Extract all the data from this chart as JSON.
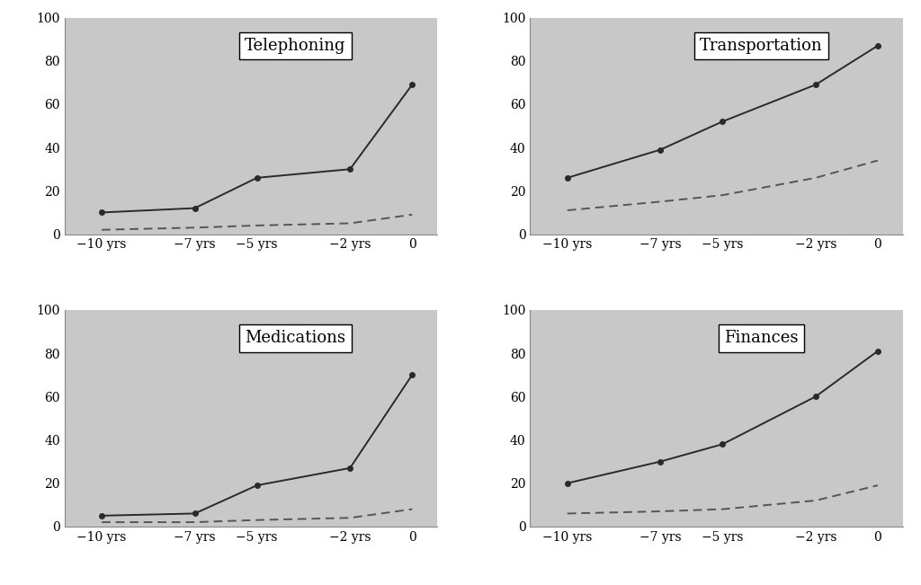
{
  "x_values": [
    -10,
    -7,
    -5,
    -2,
    0
  ],
  "x_tick_labels": [
    "−10 yrs",
    "−7 yrs",
    "−5 yrs",
    "−2 yrs",
    "0"
  ],
  "subplots": [
    {
      "title": "Telephoning",
      "solid_line": [
        10,
        12,
        26,
        30,
        69
      ],
      "dashed_line": [
        2,
        3,
        4,
        5,
        9
      ]
    },
    {
      "title": "Transportation",
      "solid_line": [
        26,
        39,
        52,
        69,
        87
      ],
      "dashed_line": [
        11,
        15,
        18,
        26,
        34
      ]
    },
    {
      "title": "Medications",
      "solid_line": [
        5,
        6,
        19,
        27,
        70
      ],
      "dashed_line": [
        2,
        2,
        3,
        4,
        8
      ]
    },
    {
      "title": "Finances",
      "solid_line": [
        20,
        30,
        38,
        60,
        81
      ],
      "dashed_line": [
        6,
        7,
        8,
        12,
        19
      ]
    }
  ],
  "bg_color": "#c8c8c8",
  "solid_color": "#2a2a2a",
  "dashed_color": "#555555",
  "ylim": [
    0,
    100
  ],
  "yticks": [
    0,
    20,
    40,
    60,
    80,
    100
  ],
  "marker": "o",
  "marker_size": 4,
  "line_width": 1.4,
  "title_fontsize": 13,
  "tick_fontsize": 10,
  "outer_bg": "#ffffff"
}
